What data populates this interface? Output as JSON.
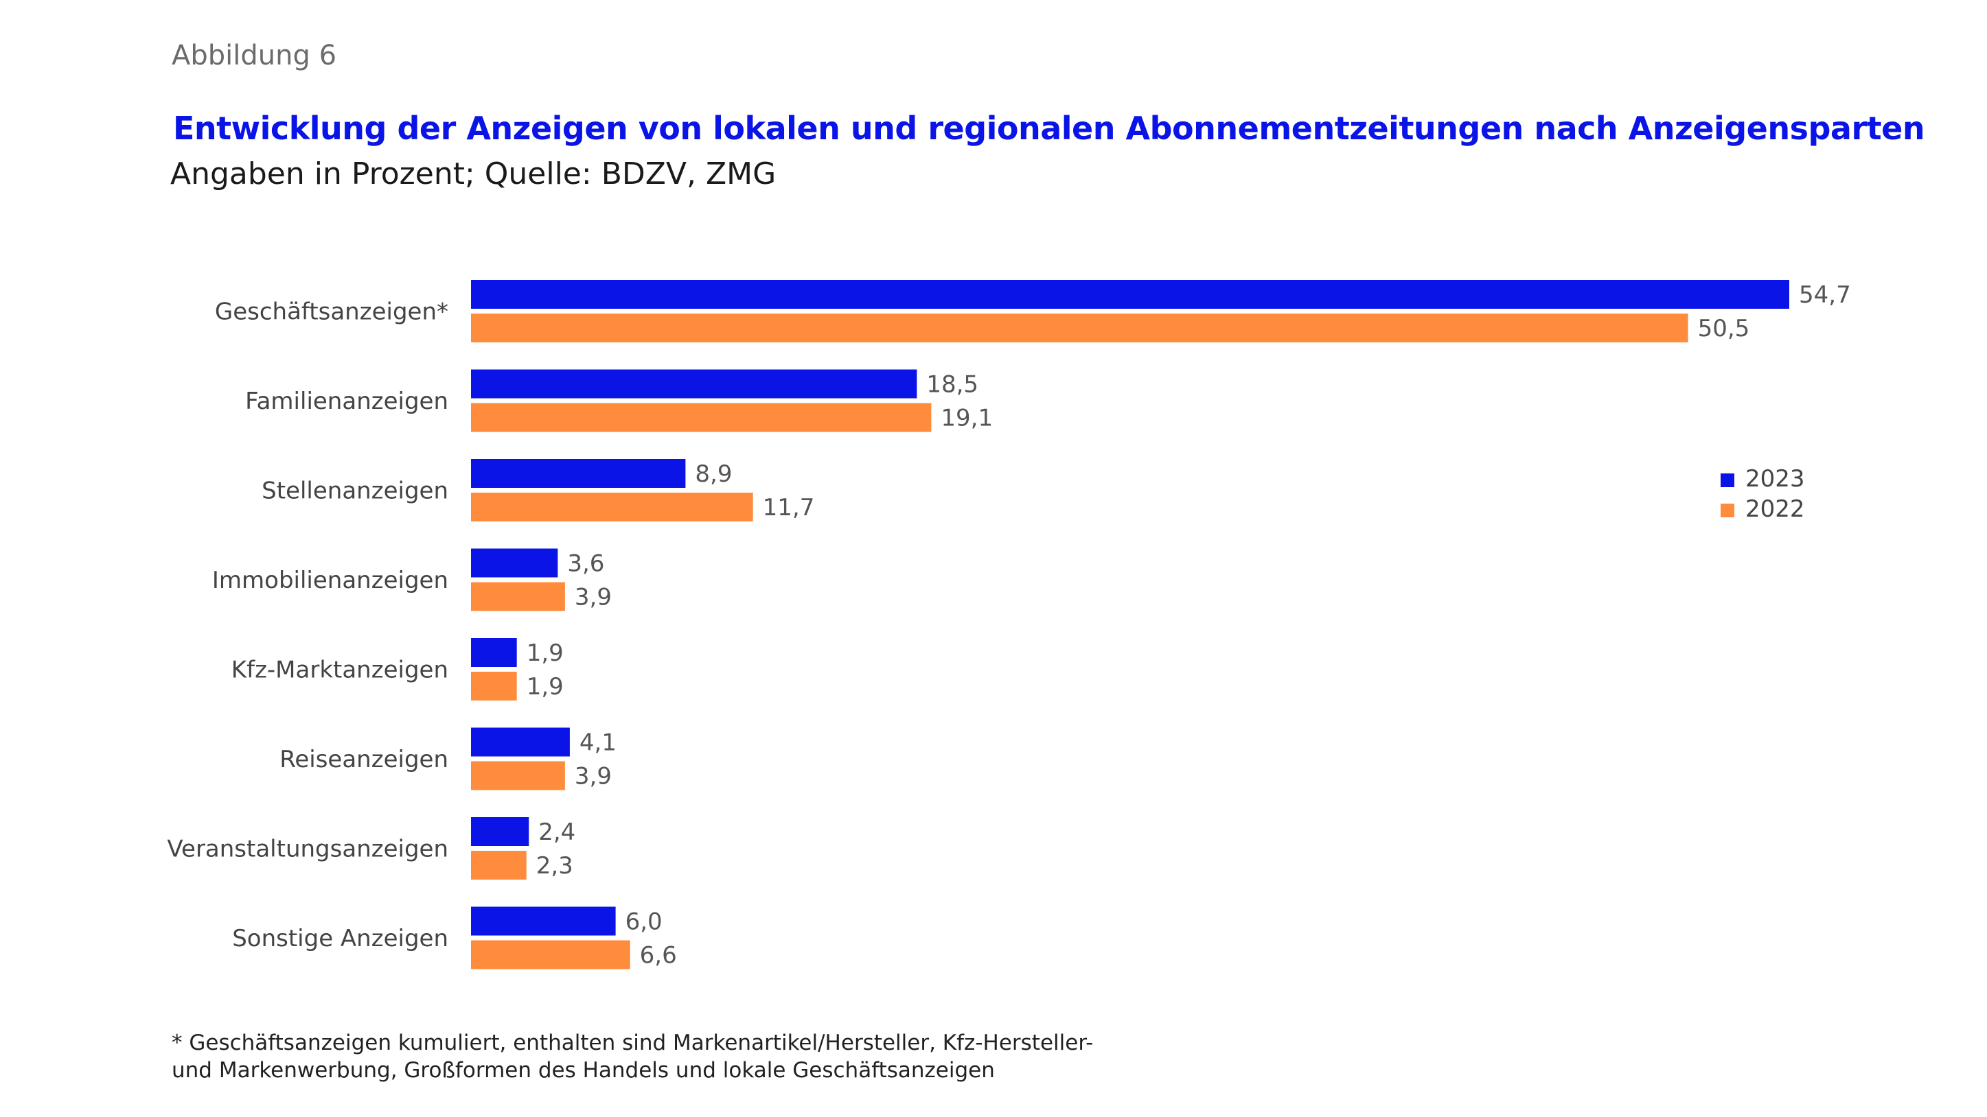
{
  "figure_label": "Abbildung 6",
  "chart_data": {
    "type": "bar",
    "orientation": "horizontal",
    "title": "Entwicklung der Anzeigen von lokalen und regionalen Abonnementzeitungen nach Anzeigensparten",
    "subtitle": "Angaben in Prozent; Quelle: BDZV, ZMG",
    "categories": [
      "Geschäftsanzeigen*",
      "Familienanzeigen",
      "Stellenanzeigen",
      "Immobilienanzeigen",
      "Kfz-Marktanzeigen",
      "Reiseanzeigen",
      "Veranstaltungsanzeigen",
      "Sonstige Anzeigen"
    ],
    "series": [
      {
        "name": "2023",
        "color": "#0a14e6",
        "values": [
          54.7,
          18.5,
          8.9,
          3.6,
          1.9,
          4.1,
          2.4,
          6.0
        ],
        "labels": [
          "54,7",
          "18,5",
          "8,9",
          "3,6",
          "1,9",
          "4,1",
          "2,4",
          "6,0"
        ]
      },
      {
        "name": "2022",
        "color": "#ff8c3c",
        "values": [
          50.5,
          19.1,
          11.7,
          3.9,
          1.9,
          3.9,
          2.3,
          6.6
        ],
        "labels": [
          "50,5",
          "19,1",
          "11,7",
          "3,9",
          "1,9",
          "3,9",
          "2,3",
          "6,6"
        ]
      }
    ],
    "xlim": [
      0,
      54.7
    ],
    "grid": false,
    "legend_position": "right"
  },
  "footnote": {
    "line1": "* Geschäftsanzeigen kumuliert, enthalten sind Markenartikel/Hersteller, Kfz-Hersteller-",
    "line2": "und Markenwerbung, Großformen des Handels und lokale Geschäftsanzeigen"
  }
}
